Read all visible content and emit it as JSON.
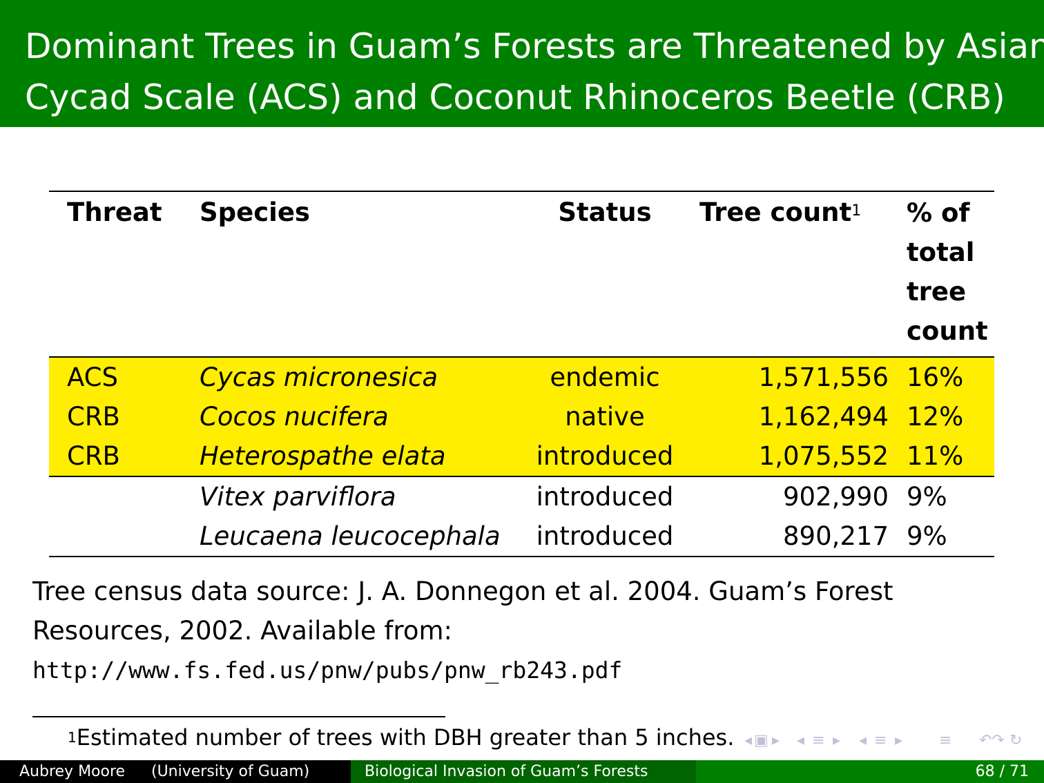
{
  "slide": {
    "title_line1": "Dominant Trees in Guam’s Forests are Threatened by Asian",
    "title_line2": "Cycad Scale (ACS) and Coconut Rhinoceros Beetle (CRB)"
  },
  "table": {
    "headers": {
      "threat": "Threat",
      "species": "Species",
      "status": "Status",
      "tree_count": "Tree count",
      "tree_count_footnote_mark": "1",
      "percent": "% of total tree count"
    },
    "rows": [
      {
        "threat": "ACS",
        "species": "Cycas micronesica",
        "status": "endemic",
        "count": "1,571,556",
        "percent": "16%"
      },
      {
        "threat": "CRB",
        "species": "Cocos nucifera",
        "status": "native",
        "count": "1,162,494",
        "percent": "12%"
      },
      {
        "threat": "CRB",
        "species": "Heterospathe elata",
        "status": "introduced",
        "count": "1,075,552",
        "percent": "11%"
      },
      {
        "threat": "",
        "species": "Vitex parviflora",
        "status": "introduced",
        "count": "902,990",
        "percent": "9%"
      },
      {
        "threat": "",
        "species": "Leucaena leucocephala",
        "status": "introduced",
        "count": "890,217",
        "percent": "9%"
      }
    ],
    "highlight_color": "#ffee00"
  },
  "source": {
    "line1": "Tree census data source: J. A. Donnegon et al. 2004. Guam’s Forest",
    "line2": "Resources, 2002. Available from:",
    "url": "http://www.fs.fed.us/pnw/pubs/pnw_rb243.pdf"
  },
  "footnote": {
    "mark": "1",
    "text": "Estimated number of trees with DBH greater than 5 inches."
  },
  "footer": {
    "author": "Aubrey Moore",
    "institution": "(University of Guam)",
    "short_title": "Biological Invasion of Guam’s Forests",
    "page": "68 / 71"
  },
  "colors": {
    "title_bar": "#008000",
    "footer_left": "#000000",
    "footer_middle": "#006400",
    "footer_right": "#008000"
  }
}
